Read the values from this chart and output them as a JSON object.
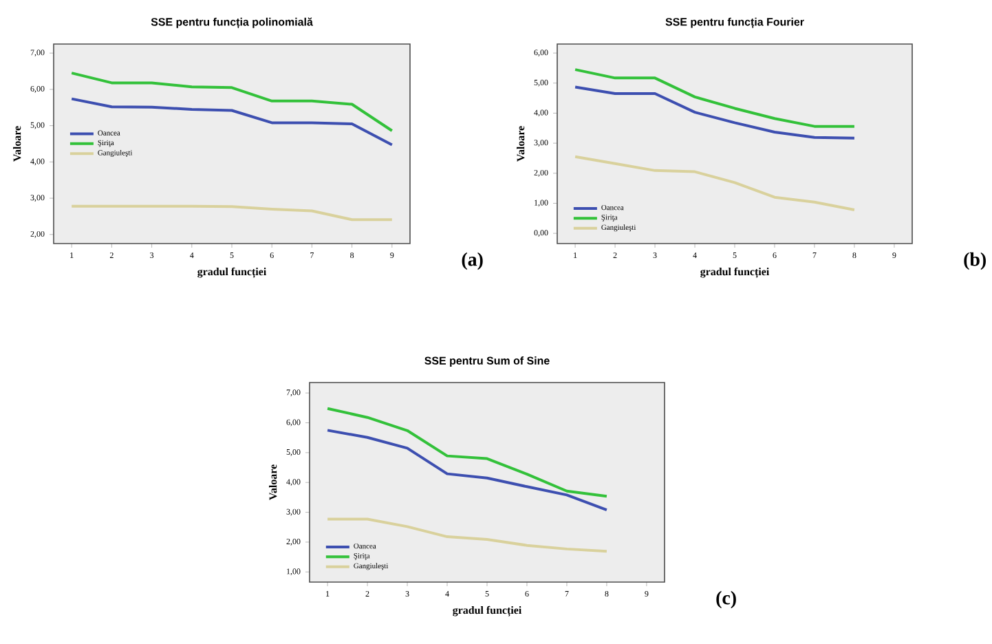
{
  "chart_data": [
    {
      "type": "line",
      "title": "SSE pentru funcția polinomială",
      "xlabel": "gradul funcției",
      "ylabel": "Valoare",
      "annotations": [
        "(a)"
      ],
      "x": [
        1,
        2,
        3,
        4,
        5,
        6,
        7,
        8,
        9
      ],
      "xlim": [
        0.55,
        9.45
      ],
      "xticks": [
        1,
        2,
        3,
        4,
        5,
        6,
        7,
        8,
        9
      ],
      "ylim": [
        1.75,
        7.25
      ],
      "yticks": [
        {
          "value": 2,
          "label": "2,00"
        },
        {
          "value": 3,
          "label": "3,00"
        },
        {
          "value": 4,
          "label": "4,00"
        },
        {
          "value": 5,
          "label": "5,00"
        },
        {
          "value": 6,
          "label": "6,00"
        },
        {
          "value": 7,
          "label": "7,00"
        }
      ],
      "legend": "left",
      "grid": false,
      "series": [
        {
          "name": "Oancea",
          "color": "#3d4fb0",
          "values": [
            5.74,
            5.52,
            5.51,
            5.45,
            5.42,
            5.08,
            5.08,
            5.05,
            4.47
          ]
        },
        {
          "name": "Şiriţa",
          "color": "#33c13a",
          "values": [
            6.45,
            6.18,
            6.18,
            6.07,
            6.05,
            5.68,
            5.68,
            5.59,
            4.86
          ]
        },
        {
          "name": "Gangiuleşti",
          "color": "#d9d19c",
          "values": [
            2.78,
            2.78,
            2.78,
            2.78,
            2.77,
            2.7,
            2.65,
            2.41,
            2.41
          ]
        }
      ]
    },
    {
      "type": "line",
      "title": "SSE pentru funcția Fourier",
      "xlabel": "gradul funcției",
      "ylabel": "Valoare",
      "annotations": [
        "(b)"
      ],
      "x": [
        1,
        2,
        3,
        4,
        5,
        6,
        7,
        8
      ],
      "xlim": [
        0.55,
        9.45
      ],
      "xticks": [
        1,
        2,
        3,
        4,
        5,
        6,
        7,
        8,
        9
      ],
      "ylim": [
        -0.34,
        6.3
      ],
      "yticks": [
        {
          "value": 0,
          "label": "0,00"
        },
        {
          "value": 1,
          "label": "1,00"
        },
        {
          "value": 2,
          "label": "2,00"
        },
        {
          "value": 3,
          "label": "3,00"
        },
        {
          "value": 4,
          "label": "4,00"
        },
        {
          "value": 5,
          "label": "5,00"
        },
        {
          "value": 6,
          "label": "6,00"
        }
      ],
      "legend": "bottom left",
      "grid": false,
      "series": [
        {
          "name": "Oancea",
          "color": "#3d4fb0",
          "values": [
            4.87,
            4.65,
            4.65,
            4.03,
            3.68,
            3.37,
            3.19,
            3.17
          ]
        },
        {
          "name": "Şiriţa",
          "color": "#33c13a",
          "values": [
            5.45,
            5.17,
            5.17,
            4.54,
            4.16,
            3.82,
            3.56,
            3.56
          ]
        },
        {
          "name": "Gangiuleşti",
          "color": "#d9d19c",
          "values": [
            2.55,
            2.32,
            2.09,
            2.05,
            1.69,
            1.2,
            1.04,
            0.78
          ]
        }
      ]
    },
    {
      "type": "line",
      "title": "SSE pentru Sum of Sine",
      "xlabel": "gradul funcției",
      "ylabel": "Valoare",
      "annotations": [
        "(c)"
      ],
      "x": [
        1,
        2,
        3,
        4,
        5,
        6,
        7,
        8
      ],
      "xlim": [
        0.55,
        9.45
      ],
      "xticks": [
        1,
        2,
        3,
        4,
        5,
        6,
        7,
        8,
        9
      ],
      "ylim": [
        0.66,
        7.35
      ],
      "yticks": [
        {
          "value": 1,
          "label": "1,00"
        },
        {
          "value": 2,
          "label": "2,00"
        },
        {
          "value": 3,
          "label": "3,00"
        },
        {
          "value": 4,
          "label": "4,00"
        },
        {
          "value": 5,
          "label": "5,00"
        },
        {
          "value": 6,
          "label": "6,00"
        },
        {
          "value": 7,
          "label": "7,00"
        }
      ],
      "legend": "bottom left",
      "grid": false,
      "series": [
        {
          "name": "Oancea",
          "color": "#3d4fb0",
          "values": [
            5.75,
            5.51,
            5.15,
            4.29,
            4.15,
            3.86,
            3.58,
            3.08
          ]
        },
        {
          "name": "Şiriţa",
          "color": "#33c13a",
          "values": [
            6.48,
            6.18,
            5.74,
            4.89,
            4.8,
            4.28,
            3.71,
            3.54
          ]
        },
        {
          "name": "Gangiuleşti",
          "color": "#d9d19c",
          "values": [
            2.77,
            2.77,
            2.52,
            2.18,
            2.09,
            1.89,
            1.77,
            1.69
          ]
        }
      ]
    }
  ]
}
